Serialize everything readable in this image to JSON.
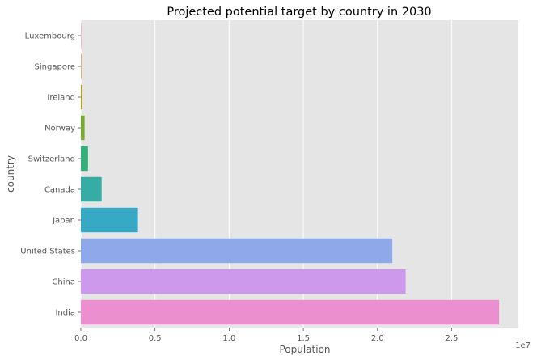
{
  "chart_data": {
    "type": "bar",
    "orientation": "horizontal",
    "title": "Projected potential target by country in 2030",
    "xlabel": "Population",
    "ylabel": "country",
    "x_offset_label": "1e7",
    "xlim": [
      0,
      29500000
    ],
    "x_ticks": [
      0,
      5000000,
      10000000,
      15000000,
      20000000,
      25000000
    ],
    "x_tick_labels": [
      "0.0",
      "0.5",
      "1.0",
      "1.5",
      "2.0",
      "2.5"
    ],
    "grid": true,
    "categories": [
      "Luxembourg",
      "Singapore",
      "Ireland",
      "Norway",
      "Switzerland",
      "Canada",
      "Japan",
      "United States",
      "China",
      "India"
    ],
    "values": [
      20000,
      30000,
      110000,
      250000,
      480000,
      1400000,
      3850000,
      21000000,
      21900000,
      28200000
    ],
    "colors": [
      "#f77189",
      "#dc8932",
      "#ae9d31",
      "#77ab31",
      "#33b07a",
      "#36ada4",
      "#38a9c5",
      "#8fa8ea",
      "#cc99ec",
      "#eb8fcf"
    ]
  }
}
